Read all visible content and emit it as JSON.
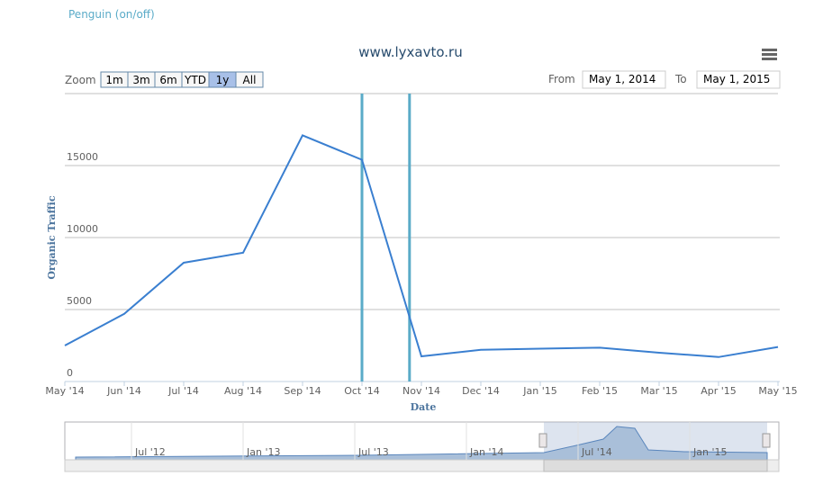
{
  "header": {
    "toggle": "Penguin (on/off)"
  },
  "zoom": {
    "label": "Zoom",
    "buttons": [
      "1m",
      "3m",
      "6m",
      "YTD",
      "1y",
      "All"
    ],
    "selected": 4
  },
  "range": {
    "from_label": "From",
    "from": "May 1, 2014",
    "to_label": "To",
    "to": "May 1, 2015"
  },
  "chart_data": {
    "type": "line",
    "title": "www.lyxavto.ru",
    "x_label": "Date",
    "y_label": "Organic Traffic",
    "categories": [
      "May '14",
      "Jun '14",
      "Jul '14",
      "Aug '14",
      "Sep '14",
      "Oct '14",
      "Nov '14",
      "Dec '14",
      "Jan '15",
      "Feb '15",
      "Mar '15",
      "Apr '15",
      "May '15"
    ],
    "series": [
      {
        "name": "Penguin (on/off)",
        "color": "#3a7fd0",
        "values": [
          2500,
          4700,
          8250,
          8950,
          17100,
          15400,
          1750,
          2200,
          2280,
          2350,
          2000,
          1700,
          2400
        ]
      }
    ],
    "vertical_lines": [
      5,
      5.8
    ],
    "vertical_line_color": "#5aabc8",
    "ylim": [
      0,
      20000
    ],
    "yticks": [
      0,
      5000,
      10000,
      15000
    ],
    "grid": true
  },
  "navigator": {
    "labels": [
      "Jul '12",
      "Jan '13",
      "Jul '13",
      "Jan '14",
      "Jul '14",
      "Jan '15"
    ]
  }
}
